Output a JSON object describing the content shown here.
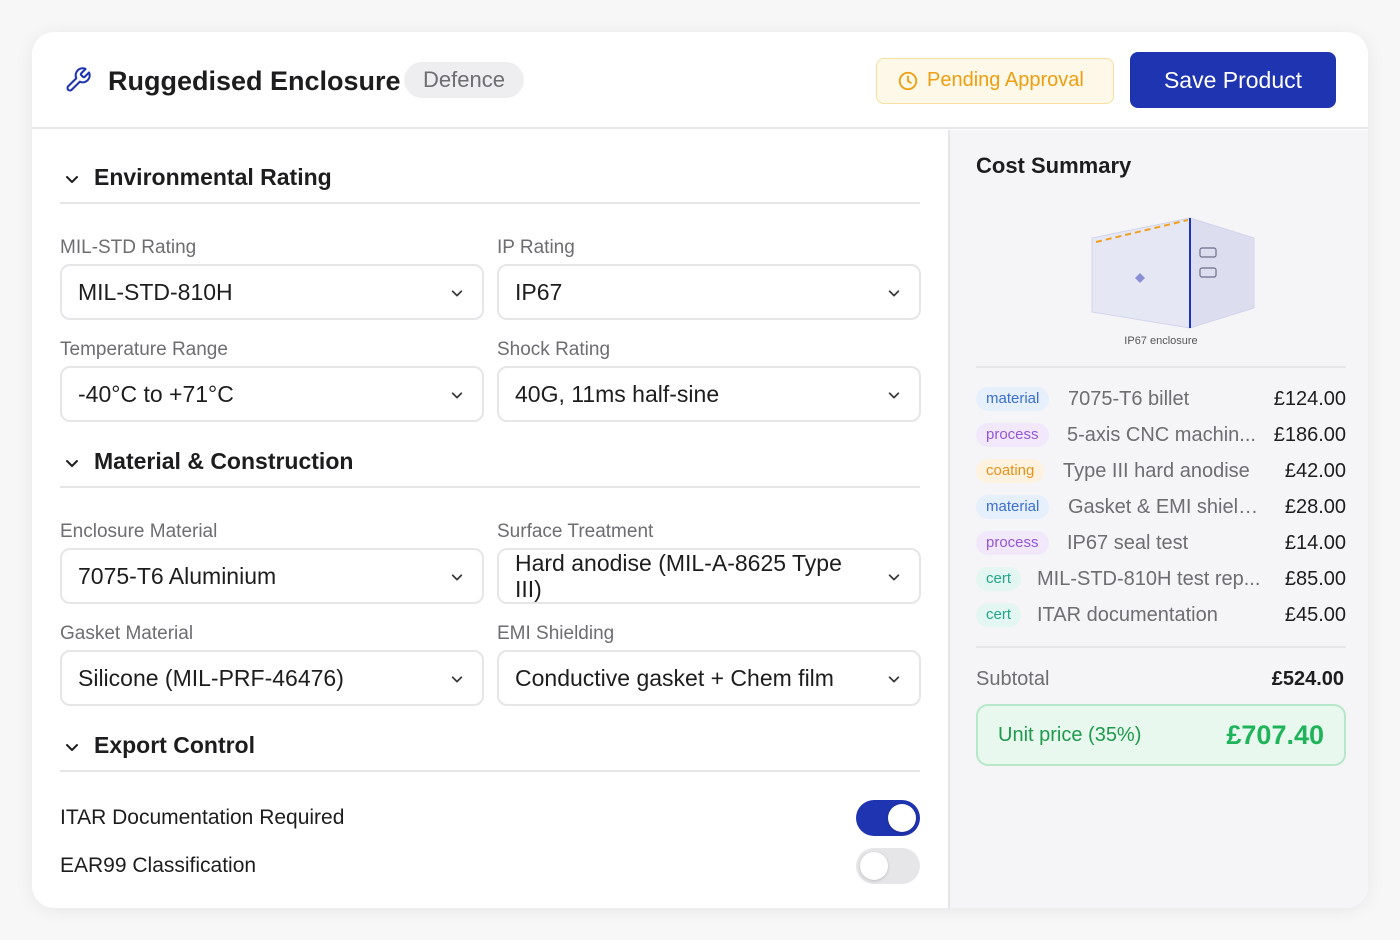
{
  "header": {
    "title": "Ruggedised Enclosure",
    "category_tag": "Defence",
    "status": "Pending Approval",
    "save_label": "Save Product"
  },
  "sections": {
    "environmental": {
      "title": "Environmental Rating",
      "fields": {
        "mil_std": {
          "label": "MIL-STD Rating",
          "value": "MIL-STD-810H"
        },
        "ip": {
          "label": "IP Rating",
          "value": "IP67"
        },
        "temperature": {
          "label": "Temperature Range",
          "value": "-40°C to +71°C"
        },
        "shock": {
          "label": "Shock Rating",
          "value": "40G, 11ms half-sine"
        }
      }
    },
    "material": {
      "title": "Material & Construction",
      "fields": {
        "enclosure": {
          "label": "Enclosure Material",
          "value": "7075-T6 Aluminium"
        },
        "surface": {
          "label": "Surface Treatment",
          "value": "Hard anodise (MIL-A-8625 Type III)"
        },
        "gasket": {
          "label": "Gasket Material",
          "value": "Silicone (MIL-PRF-46476)"
        },
        "emi": {
          "label": "EMI Shielding",
          "value": "Conductive gasket + Chem film"
        }
      }
    },
    "export": {
      "title": "Export Control",
      "toggles": [
        {
          "label": "ITAR Documentation Required",
          "on": true
        },
        {
          "label": "EAR99 Classification",
          "on": false
        }
      ]
    }
  },
  "cost_summary": {
    "title": "Cost Summary",
    "illustration_caption": "IP67 enclosure",
    "items": [
      {
        "tag": "material",
        "description": "7075-T6 billet",
        "price": "£124.00"
      },
      {
        "tag": "process",
        "description": "5-axis CNC machin...",
        "price": "£186.00"
      },
      {
        "tag": "coating",
        "description": "Type III hard anodise",
        "price": "£42.00"
      },
      {
        "tag": "material",
        "description": "Gasket & EMI shieldi...",
        "price": "£28.00"
      },
      {
        "tag": "process",
        "description": "IP67 seal test",
        "price": "£14.00"
      },
      {
        "tag": "cert",
        "description": "MIL-STD-810H test rep...",
        "price": "£85.00"
      },
      {
        "tag": "cert",
        "description": "ITAR documentation",
        "price": "£45.00"
      }
    ],
    "subtotal_label": "Subtotal",
    "subtotal": "£524.00",
    "unit_price_label": "Unit price (35%)",
    "unit_price": "£707.40"
  },
  "colors": {
    "primary": "#1f34b0",
    "pending": "#ee9e10",
    "success": "#1fb45a"
  }
}
